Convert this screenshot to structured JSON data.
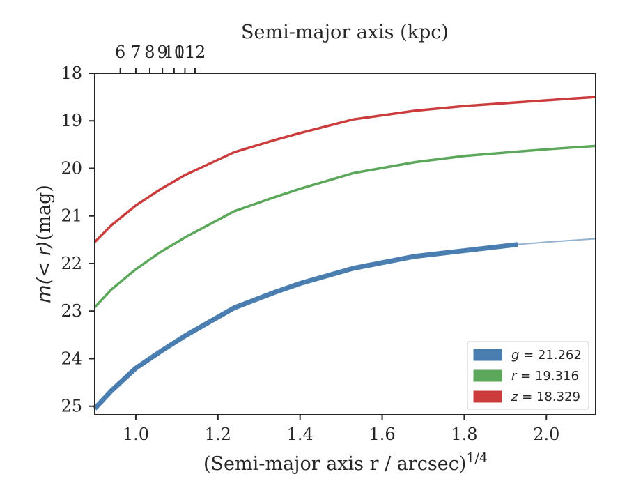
{
  "chart_data": {
    "type": "line",
    "title": "",
    "xlabel": "(Semi-major axis r / arcsec)",
    "xlabel_sup": "1/4",
    "ylabel": "(mag)",
    "ylabel_math": "m(< r)",
    "top_xlabel": "Semi-major axis (kpc)",
    "xlim": [
      0.9,
      2.12
    ],
    "ylim": [
      25.18,
      18.0
    ],
    "y_inverted": true,
    "top_kpc_per_arcsec": 7.0,
    "xticks": [
      1.0,
      1.2,
      1.4,
      1.6,
      1.8,
      2.0
    ],
    "xtick_labels": [
      "1.0",
      "1.2",
      "1.4",
      "1.6",
      "1.8",
      "2.0"
    ],
    "yticks": [
      18,
      19,
      20,
      21,
      22,
      23,
      24,
      25
    ],
    "ytick_labels": [
      "18",
      "19",
      "20",
      "21",
      "22",
      "23",
      "24",
      "25"
    ],
    "top_ticks": [
      6,
      7,
      8,
      9,
      10,
      11,
      12
    ],
    "top_tick_labels": [
      "6",
      "7",
      "8",
      "9",
      "10",
      "11",
      "12"
    ],
    "grid": false,
    "legend_position": "lower-right",
    "series": [
      {
        "name": "g = 21.262",
        "band": "g",
        "value": "= 21.262",
        "color": "#4a7eb0",
        "thick_until_x": 1.93,
        "x": [
          0.9,
          0.94,
          1.0,
          1.06,
          1.12,
          1.24,
          1.34,
          1.4,
          1.53,
          1.68,
          1.8,
          1.93,
          2.0,
          2.12
        ],
        "y": [
          25.05,
          24.68,
          24.2,
          23.85,
          23.52,
          22.93,
          22.6,
          22.42,
          22.1,
          21.85,
          21.73,
          21.6,
          21.55,
          21.48
        ]
      },
      {
        "name": "r = 19.316",
        "band": "r",
        "value": "= 19.316",
        "color": "#5ba85a",
        "x": [
          0.9,
          0.94,
          1.0,
          1.06,
          1.12,
          1.24,
          1.34,
          1.4,
          1.53,
          1.68,
          1.8,
          2.0,
          2.12
        ],
        "y": [
          22.92,
          22.55,
          22.12,
          21.76,
          21.45,
          20.9,
          20.6,
          20.43,
          20.1,
          19.87,
          19.74,
          19.6,
          19.53
        ]
      },
      {
        "name": "z = 18.329",
        "band": "z",
        "value": "= 18.329",
        "color": "#cc3c3c",
        "x": [
          0.9,
          0.94,
          1.0,
          1.06,
          1.12,
          1.24,
          1.34,
          1.4,
          1.53,
          1.68,
          1.8,
          2.0,
          2.12
        ],
        "y": [
          21.55,
          21.2,
          20.78,
          20.44,
          20.14,
          19.66,
          19.4,
          19.26,
          18.97,
          18.79,
          18.69,
          18.57,
          18.5
        ]
      }
    ]
  }
}
